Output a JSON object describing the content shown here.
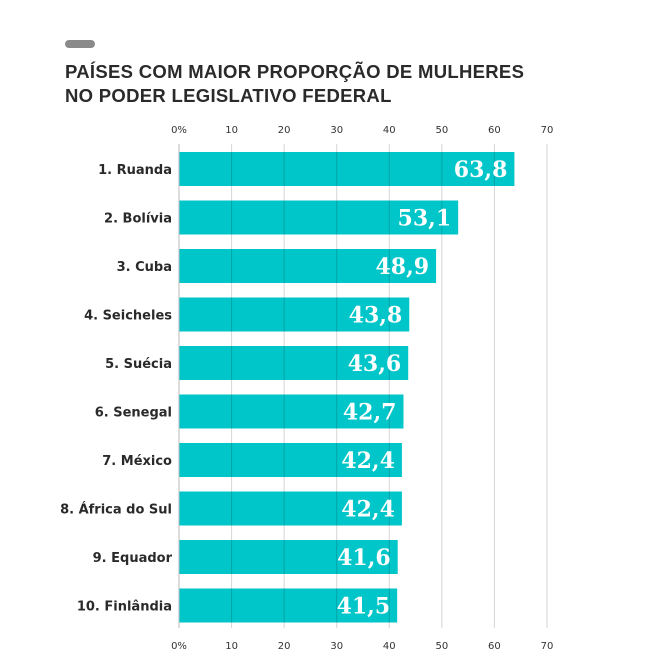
{
  "chart_data": {
    "type": "bar",
    "orientation": "horizontal",
    "title": "PAÍSES COM MAIOR PROPORÇÃO DE MULHERES NO PODER LEGISLATIVO FEDERAL",
    "title_lines": [
      "PAÍSES COM MAIOR PROPORÇÃO DE MULHERES",
      "NO PODER LEGISLATIVO FEDERAL"
    ],
    "categories": [
      "1. Ruanda",
      "2. Bolívia",
      "3. Cuba",
      "4. Seicheles",
      "5. Suécia",
      "6. Senegal",
      "7. México",
      "8. África do Sul",
      "9. Equador",
      "10. Finlândia"
    ],
    "values": [
      63.8,
      53.1,
      48.9,
      43.8,
      43.6,
      42.7,
      42.4,
      42.4,
      41.6,
      41.5
    ],
    "value_labels": [
      "63,8",
      "53,1",
      "48,9",
      "43,8",
      "43,6",
      "42,7",
      "42,4",
      "42,4",
      "41,6",
      "41,5"
    ],
    "xlim": [
      0,
      70
    ],
    "ticks": [
      0,
      10,
      20,
      30,
      40,
      50,
      60,
      70
    ],
    "tick_labels": [
      "0%",
      "10",
      "20",
      "30",
      "40",
      "50",
      "60",
      "70"
    ],
    "axis_position": "top and bottom",
    "grid": true,
    "bar_color": "#00c5c9"
  }
}
